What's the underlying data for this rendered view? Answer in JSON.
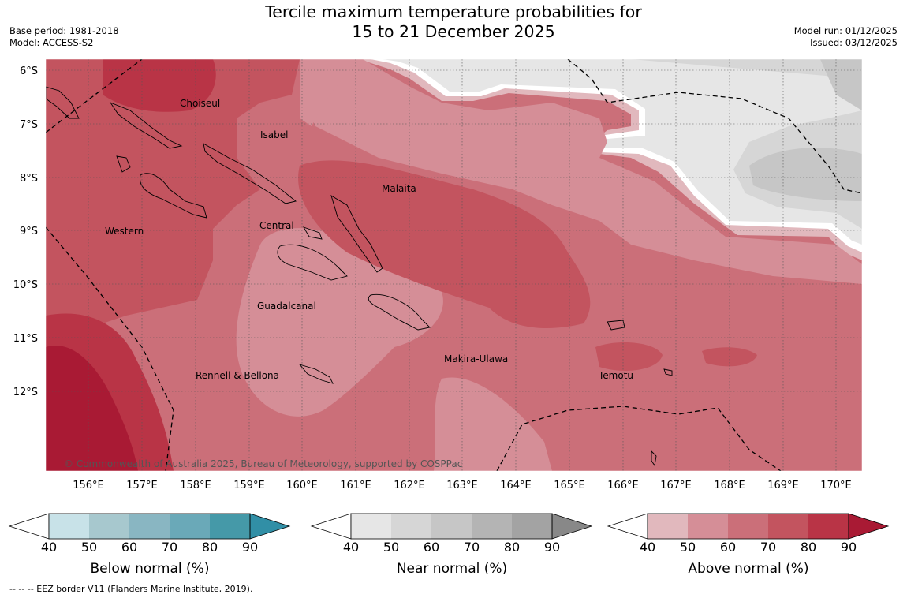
{
  "title": {
    "line1": "Tercile maximum temperature probabilities for",
    "line2": "15 to 21 December 2025"
  },
  "meta": {
    "base_period": "Base period: 1981-2018",
    "model": "Model: ACCESS-S2",
    "model_run": "Model run: 01/12/2025",
    "issued": "Issued: 03/12/2025"
  },
  "map": {
    "lat_labels": [
      "6°S",
      "7°S",
      "8°S",
      "9°S",
      "10°S",
      "11°S",
      "12°S"
    ],
    "lon_labels": [
      "156°E",
      "157°E",
      "158°E",
      "159°E",
      "160°E",
      "161°E",
      "162°E",
      "163°E",
      "164°E",
      "165°E",
      "166°E",
      "167°E",
      "168°E",
      "169°E",
      "170°E"
    ],
    "regions": [
      "Choiseul",
      "Isabel",
      "Malaita",
      "Central",
      "Western",
      "Guadalcanal",
      "Makira-Ulawa",
      "Rennell & Bellona",
      "Temotu"
    ],
    "credit": "© Commonwealth of Australia 2025, Bureau of Meteorology, supported by COSPPac",
    "colors": {
      "above": [
        "#e1b8bd",
        "#d58e97",
        "#cb6f79",
        "#c3545f",
        "#b93446",
        "#a91a34"
      ],
      "near": [
        "#e6e6e6",
        "#d6d6d6",
        "#c6c6c6",
        "#b4b4b4",
        "#a3a3a3",
        "#888888"
      ],
      "below": [
        "#c8e2e8",
        "#a7c8ce",
        "#89b6c2",
        "#6aa9b8",
        "#4599a8",
        "#318fa6"
      ]
    }
  },
  "colorbars": [
    {
      "label": "Below normal (%)",
      "ticks": [
        "40",
        "50",
        "60",
        "70",
        "80",
        "90"
      ]
    },
    {
      "label": "Near normal (%)",
      "ticks": [
        "40",
        "50",
        "60",
        "70",
        "80",
        "90"
      ]
    },
    {
      "label": "Above normal (%)",
      "ticks": [
        "40",
        "50",
        "60",
        "70",
        "80",
        "90"
      ]
    }
  ],
  "footer": "--  --  -- EEZ border V11 (Flanders Marine Institute, 2019)."
}
